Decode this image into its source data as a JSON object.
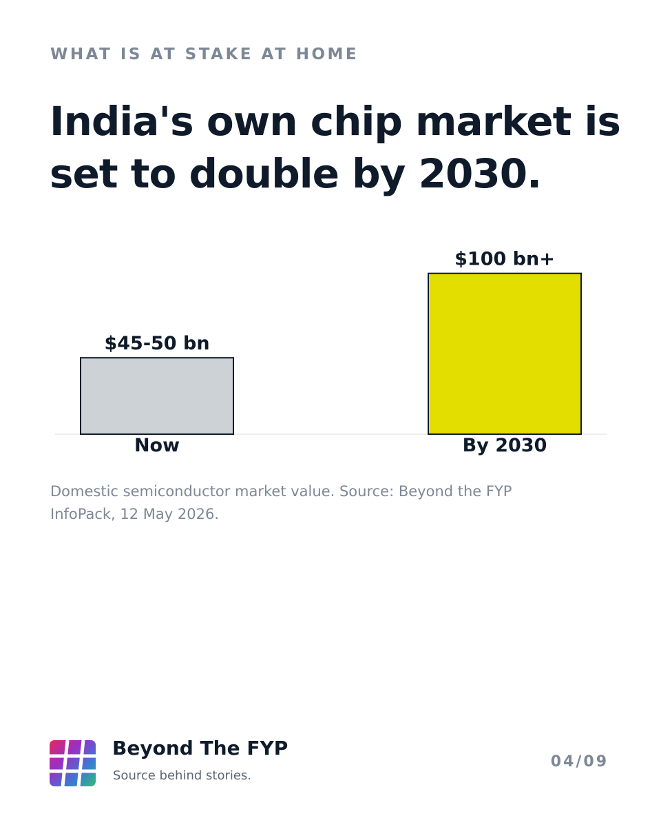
{
  "kicker": "WHAT IS AT STAKE AT HOME",
  "headline": "India's own chip market is set to double by 2030.",
  "caption": "Domestic semiconductor market value. Source: Beyond the FYP InfoPack, 12 May 2026.",
  "footer": {
    "brand_name": "Beyond The FYP",
    "tagline": "Source behind stories.",
    "page_number": "04/09",
    "logo_icon": "hash-gradient-icon"
  },
  "chart_data": {
    "type": "bar",
    "categories": [
      "Now",
      "By 2030"
    ],
    "values": [
      47.5,
      100
    ],
    "data_labels": [
      "$45-50 bn",
      "$100 bn+"
    ],
    "colors": [
      "#cdd2d6",
      "#e3dd00"
    ],
    "ylim": [
      0,
      120
    ],
    "grid": false,
    "title": "",
    "xlabel": "",
    "ylabel": ""
  },
  "colors": {
    "text_dark": "#0f1b2a",
    "text_muted": "#7d8895"
  }
}
